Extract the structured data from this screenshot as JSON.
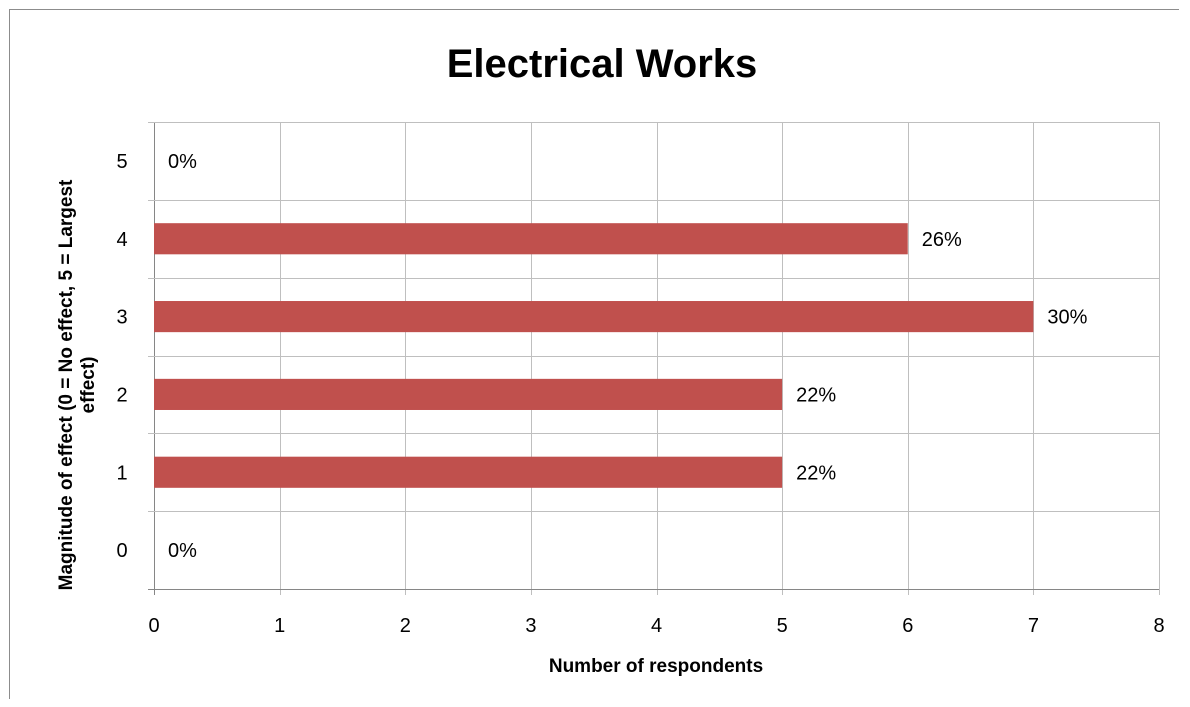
{
  "chart_data": {
    "type": "bar",
    "orientation": "horizontal",
    "title": "Electrical Works",
    "xlabel": "Number of respondents",
    "ylabel": "Magnitude of effect (0 = No effect, 5 = Largest effect)",
    "categories": [
      "0",
      "1",
      "2",
      "3",
      "4",
      "5"
    ],
    "values": [
      0,
      5,
      5,
      7,
      6,
      0
    ],
    "data_labels": [
      "0%",
      "22%",
      "22%",
      "30%",
      "26%",
      "0%"
    ],
    "xlim": [
      0,
      8
    ],
    "xticks": [
      "0",
      "1",
      "2",
      "3",
      "4",
      "5",
      "6",
      "7",
      "8"
    ],
    "grid": true,
    "legend": "none",
    "bar_color": "#c0504d"
  }
}
